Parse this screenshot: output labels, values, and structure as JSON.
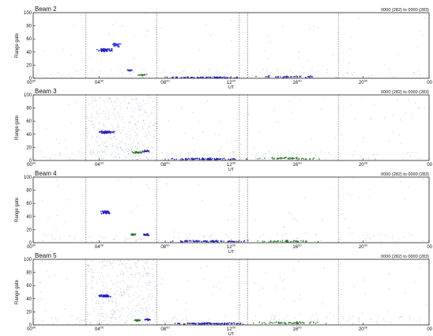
{
  "chart_data": [
    {
      "type": "scatter",
      "title": "Beam 2",
      "range_label": "0000 (282) to 0000 (283)",
      "ylabel": "Range gate",
      "xlabel": "UT",
      "ylim": [
        0,
        100
      ],
      "yticks": [
        "0",
        "20",
        "40",
        "60",
        "80",
        "100"
      ],
      "xlim": [
        0,
        24
      ],
      "xticks": [
        {
          "base": "00",
          "sup": "00"
        },
        {
          "base": "04",
          "sup": "00"
        },
        {
          "base": "08",
          "sup": "00"
        },
        {
          "base": "12",
          "sup": "00"
        },
        {
          "base": "16",
          "sup": "00"
        },
        {
          "base": "20",
          "sup": "00"
        },
        {
          "base": "00",
          "sup": ""
        }
      ],
      "dashed_lines_ut": [
        3.2,
        7.5,
        12.5,
        13.0,
        18.5
      ],
      "background_scatter": "light",
      "clusters": [
        {
          "ut": 4.3,
          "gate": 44,
          "dut": 0.6,
          "dgate": 3,
          "n": 40,
          "color": "#2424c8"
        },
        {
          "ut": 5.0,
          "gate": 52,
          "dut": 0.35,
          "dgate": 4,
          "n": 22,
          "color": "#3a3ae0"
        },
        {
          "ut": 5.8,
          "gate": 13,
          "dut": 0.25,
          "dgate": 2,
          "n": 8,
          "color": "#3434d0"
        },
        {
          "ut": 6.6,
          "gate": 6,
          "dut": 0.3,
          "dgate": 2,
          "n": 10,
          "color": "#2a7d2a"
        },
        {
          "ut": 10.5,
          "gate": 2,
          "dut": 3.0,
          "dgate": 1.5,
          "n": 40,
          "color": "#2222aa"
        },
        {
          "ut": 15.5,
          "gate": 3,
          "dut": 2.5,
          "dgate": 2,
          "n": 25,
          "color": "#3333bb"
        }
      ]
    },
    {
      "type": "scatter",
      "title": "Beam 3",
      "range_label": "0000 (282) to 0000 (283)",
      "ylabel": "Range gate",
      "xlabel": "UT",
      "ylim": [
        0,
        100
      ],
      "yticks": [
        "0",
        "20",
        "40",
        "60",
        "80",
        "100"
      ],
      "xlim": [
        0,
        24
      ],
      "xticks": [
        {
          "base": "00",
          "sup": "00"
        },
        {
          "base": "04",
          "sup": "00"
        },
        {
          "base": "08",
          "sup": "00"
        },
        {
          "base": "12",
          "sup": "00"
        },
        {
          "base": "16",
          "sup": "00"
        },
        {
          "base": "20",
          "sup": "00"
        },
        {
          "base": "00",
          "sup": ""
        }
      ],
      "dashed_lines_ut": [
        3.2,
        7.5,
        12.5,
        13.0,
        18.5
      ],
      "background_scatter": "dense",
      "clusters": [
        {
          "ut": 4.4,
          "gate": 44,
          "dut": 0.6,
          "dgate": 3,
          "n": 40,
          "color": "#2424c8"
        },
        {
          "ut": 6.3,
          "gate": 13,
          "dut": 0.4,
          "dgate": 2,
          "n": 18,
          "color": "#2a7d2a"
        },
        {
          "ut": 6.8,
          "gate": 15,
          "dut": 0.3,
          "dgate": 2,
          "n": 10,
          "color": "#2222aa"
        },
        {
          "ut": 10.5,
          "gate": 3,
          "dut": 3.0,
          "dgate": 2,
          "n": 50,
          "color": "#2222aa"
        },
        {
          "ut": 15.5,
          "gate": 4,
          "dut": 2.5,
          "dgate": 2,
          "n": 30,
          "color": "#2a7d2a"
        }
      ]
    },
    {
      "type": "scatter",
      "title": "Beam 4",
      "range_label": "0000 (282) to 0000 (283)",
      "ylabel": "Range gate",
      "xlabel": "UT",
      "ylim": [
        0,
        100
      ],
      "yticks": [
        "0",
        "20",
        "40",
        "60",
        "80",
        "100"
      ],
      "xlim": [
        0,
        24
      ],
      "xticks": [
        {
          "base": "00",
          "sup": "00"
        },
        {
          "base": "04",
          "sup": "00"
        },
        {
          "base": "08",
          "sup": "00"
        },
        {
          "base": "12",
          "sup": "00"
        },
        {
          "base": "16",
          "sup": "00"
        },
        {
          "base": "20",
          "sup": "00"
        },
        {
          "base": "00",
          "sup": ""
        }
      ],
      "dashed_lines_ut": [
        3.2,
        7.5,
        12.5,
        13.0,
        18.5
      ],
      "background_scatter": "light",
      "clusters": [
        {
          "ut": 4.4,
          "gate": 47,
          "dut": 0.4,
          "dgate": 4,
          "n": 30,
          "color": "#2424c8"
        },
        {
          "ut": 6.0,
          "gate": 13,
          "dut": 0.25,
          "dgate": 2,
          "n": 14,
          "color": "#2a7d2a"
        },
        {
          "ut": 6.8,
          "gate": 13,
          "dut": 0.3,
          "dgate": 2,
          "n": 14,
          "color": "#2222aa"
        },
        {
          "ut": 10.5,
          "gate": 3,
          "dut": 3.0,
          "dgate": 2,
          "n": 45,
          "color": "#2222aa"
        },
        {
          "ut": 15.5,
          "gate": 3,
          "dut": 2.5,
          "dgate": 2,
          "n": 25,
          "color": "#2a7d2a"
        }
      ]
    },
    {
      "type": "scatter",
      "title": "Beam 5",
      "range_label": "0000 (282) to 0000 (283)",
      "ylabel": "Range gate",
      "xlabel": "UT",
      "ylim": [
        0,
        100
      ],
      "yticks": [
        "0",
        "20",
        "40",
        "60",
        "80",
        "100"
      ],
      "xlim": [
        0,
        24
      ],
      "xticks": [
        {
          "base": "00",
          "sup": "00"
        },
        {
          "base": "04",
          "sup": "00"
        },
        {
          "base": "08",
          "sup": "00"
        },
        {
          "base": "12",
          "sup": "00"
        },
        {
          "base": "16",
          "sup": "00"
        },
        {
          "base": "20",
          "sup": "00"
        },
        {
          "base": "00",
          "sup": ""
        }
      ],
      "dashed_lines_ut": [
        3.2,
        7.5,
        12.5,
        13.0,
        18.5
      ],
      "background_scatter": "dense",
      "clusters": [
        {
          "ut": 4.3,
          "gate": 45,
          "dut": 0.5,
          "dgate": 3,
          "n": 35,
          "color": "#2424c8"
        },
        {
          "ut": 6.3,
          "gate": 8,
          "dut": 0.3,
          "dgate": 2,
          "n": 14,
          "color": "#2a7d2a"
        },
        {
          "ut": 6.9,
          "gate": 9,
          "dut": 0.3,
          "dgate": 2,
          "n": 12,
          "color": "#2222aa"
        },
        {
          "ut": 10.5,
          "gate": 3,
          "dut": 3.0,
          "dgate": 2,
          "n": 50,
          "color": "#2222aa"
        },
        {
          "ut": 15.5,
          "gate": 4,
          "dut": 2.5,
          "dgate": 2,
          "n": 30,
          "color": "#2a7d2a"
        }
      ]
    }
  ]
}
